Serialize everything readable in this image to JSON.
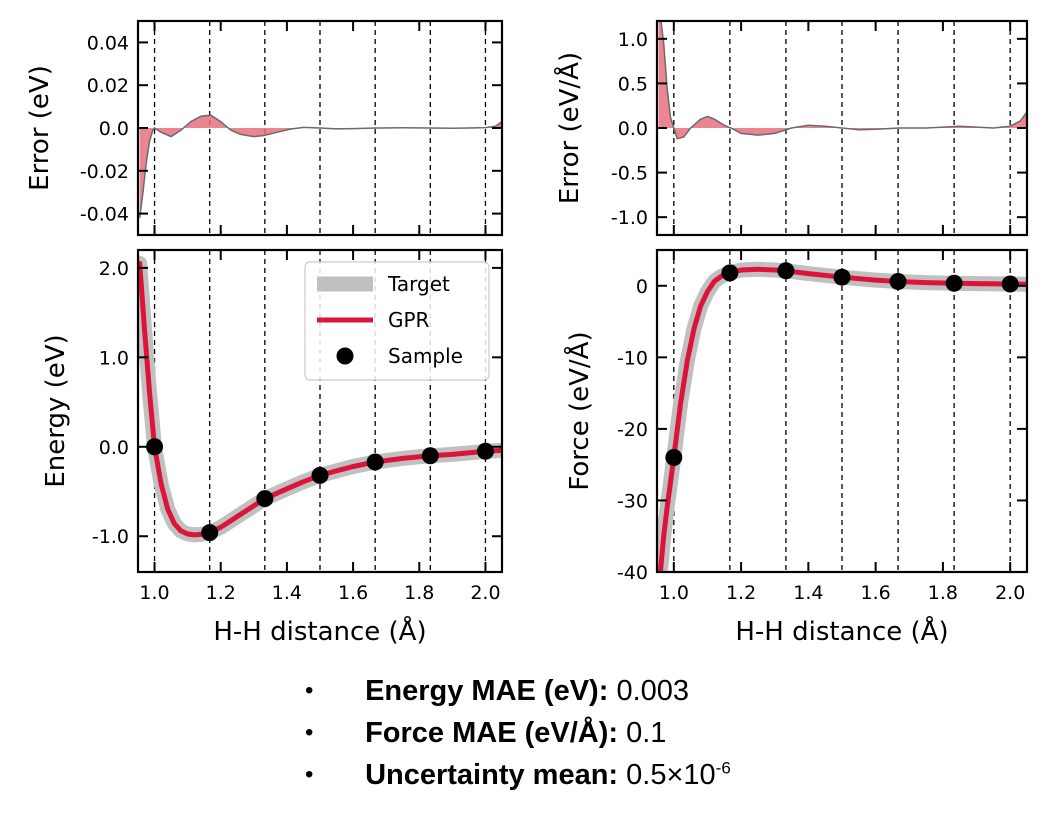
{
  "chart_data": [
    {
      "id": "energy_error",
      "type": "area",
      "ylabel": "Error (eV)",
      "xlim": [
        0.95,
        2.05
      ],
      "ylim": [
        -0.05,
        0.05
      ],
      "yticks": [
        -0.04,
        -0.02,
        0.0,
        0.02,
        0.04
      ],
      "ytick_labels": [
        "-0.04",
        "-0.02",
        "0.0",
        "0.02",
        "0.04"
      ],
      "x": [
        0.955,
        0.965,
        0.975,
        0.985,
        0.995,
        1.0,
        1.02,
        1.05,
        1.08,
        1.11,
        1.14,
        1.17,
        1.2,
        1.23,
        1.26,
        1.3,
        1.33,
        1.37,
        1.41,
        1.45,
        1.5,
        1.55,
        1.6,
        1.67,
        1.75,
        1.83,
        1.9,
        1.95,
        2.0,
        2.03,
        2.05
      ],
      "y": [
        -0.042,
        -0.03,
        -0.016,
        -0.006,
        -0.001,
        0.0,
        -0.002,
        -0.004,
        -0.001,
        0.003,
        0.0055,
        0.006,
        0.003,
        -0.001,
        -0.003,
        -0.004,
        -0.0035,
        -0.002,
        -0.0005,
        0.0003,
        0.0,
        -0.0004,
        -0.0003,
        0.0,
        0.0001,
        0.0,
        -0.0001,
        0.0,
        0.0002,
        0.0008,
        0.003
      ],
      "vlines": [
        1.0,
        1.1667,
        1.3333,
        1.5,
        1.6667,
        1.8333,
        2.0
      ],
      "colors": {
        "fill": "#e8707f",
        "line": "#6b6b6b"
      }
    },
    {
      "id": "force_error",
      "type": "area",
      "ylabel": "Error (eV/Å)",
      "xlim": [
        0.95,
        2.05
      ],
      "ylim": [
        -1.2,
        1.2
      ],
      "yticks": [
        -1.0,
        -0.5,
        0.0,
        0.5,
        1.0
      ],
      "ytick_labels": [
        "-1.0",
        "-0.5",
        "0.0",
        "0.5",
        "1.0"
      ],
      "x": [
        0.955,
        0.962,
        0.97,
        0.98,
        0.99,
        1.0,
        1.01,
        1.03,
        1.05,
        1.08,
        1.1,
        1.12,
        1.15,
        1.17,
        1.2,
        1.25,
        1.3,
        1.35,
        1.4,
        1.45,
        1.5,
        1.55,
        1.6,
        1.67,
        1.75,
        1.8,
        1.85,
        1.9,
        1.95,
        2.0,
        2.03,
        2.05
      ],
      "y": [
        1.2,
        1.2,
        0.95,
        0.45,
        0.12,
        0.0,
        -0.12,
        -0.1,
        0.0,
        0.1,
        0.13,
        0.1,
        0.03,
        0.0,
        -0.06,
        -0.08,
        -0.06,
        0.0,
        0.03,
        0.02,
        0.0,
        -0.02,
        -0.015,
        0.0,
        0.0,
        0.01,
        0.02,
        0.01,
        0.0,
        0.02,
        0.08,
        0.18
      ],
      "vlines": [
        1.0,
        1.1667,
        1.3333,
        1.5,
        1.6667,
        1.8333,
        2.0
      ],
      "colors": {
        "fill": "#e8707f",
        "line": "#6b6b6b"
      }
    },
    {
      "id": "energy",
      "type": "line",
      "xlabel": "H-H distance (Å)",
      "ylabel": "Energy (eV)",
      "xlim": [
        0.95,
        2.05
      ],
      "ylim": [
        -1.4,
        2.2
      ],
      "xticks": [
        1.0,
        1.2,
        1.4,
        1.6,
        1.8,
        2.0
      ],
      "xtick_labels": [
        "1.0",
        "1.2",
        "1.4",
        "1.6",
        "1.8",
        "2.0"
      ],
      "yticks": [
        -1.0,
        0.0,
        1.0,
        2.0
      ],
      "ytick_labels": [
        "-1.0",
        "0.0",
        "1.0",
        "2.0"
      ],
      "curve_x": [
        0.955,
        0.97,
        0.985,
        1.0,
        1.02,
        1.04,
        1.06,
        1.08,
        1.1,
        1.12,
        1.14,
        1.16,
        1.1667,
        1.2,
        1.25,
        1.3,
        1.3333,
        1.4,
        1.45,
        1.5,
        1.55,
        1.6,
        1.6667,
        1.75,
        1.8333,
        1.9,
        2.0,
        2.05
      ],
      "curve_y": [
        2.05,
        1.3,
        0.6,
        0.0,
        -0.42,
        -0.7,
        -0.86,
        -0.94,
        -0.975,
        -0.985,
        -0.98,
        -0.965,
        -0.96,
        -0.9,
        -0.78,
        -0.66,
        -0.58,
        -0.47,
        -0.39,
        -0.32,
        -0.27,
        -0.22,
        -0.17,
        -0.13,
        -0.1,
        -0.085,
        -0.05,
        -0.04
      ],
      "series": [
        {
          "name": "Target",
          "color": "#c0c0c0"
        },
        {
          "name": "GPR",
          "color": "#dc143c"
        },
        {
          "name": "Sample",
          "color": "#000000",
          "x": [
            1.0,
            1.1667,
            1.3333,
            1.5,
            1.6667,
            1.8333,
            2.0
          ],
          "y": [
            0.0,
            -0.96,
            -0.58,
            -0.32,
            -0.17,
            -0.1,
            -0.05
          ]
        }
      ],
      "legend": "top-right",
      "vlines": [
        1.0,
        1.1667,
        1.3333,
        1.5,
        1.6667,
        1.8333,
        2.0
      ]
    },
    {
      "id": "force",
      "type": "line",
      "xlabel": "H-H distance (Å)",
      "ylabel": "Force (eV/Å)",
      "xlim": [
        0.95,
        2.05
      ],
      "ylim": [
        -40,
        5
      ],
      "xticks": [
        1.0,
        1.2,
        1.4,
        1.6,
        1.8,
        2.0
      ],
      "xtick_labels": [
        "1.0",
        "1.2",
        "1.4",
        "1.6",
        "1.8",
        "2.0"
      ],
      "yticks": [
        -40,
        -30,
        -20,
        -10,
        0
      ],
      "ytick_labels": [
        "-40",
        "-30",
        "-20",
        "-10",
        "0"
      ],
      "curve_x": [
        0.96,
        0.97,
        0.98,
        0.99,
        1.0,
        1.02,
        1.04,
        1.06,
        1.08,
        1.1,
        1.12,
        1.14,
        1.16,
        1.1667,
        1.2,
        1.25,
        1.3,
        1.3333,
        1.4,
        1.5,
        1.6,
        1.6667,
        1.75,
        1.8333,
        1.9,
        2.0,
        2.05
      ],
      "curve_y": [
        -40,
        -35,
        -31,
        -27.5,
        -24,
        -16.5,
        -10.5,
        -6,
        -2.8,
        -0.8,
        0.6,
        1.3,
        1.7,
        1.8,
        2.2,
        2.3,
        2.2,
        2.1,
        1.7,
        1.2,
        0.8,
        0.6,
        0.45,
        0.35,
        0.3,
        0.25,
        0.2
      ],
      "series": [
        {
          "name": "Target",
          "color": "#c0c0c0"
        },
        {
          "name": "GPR",
          "color": "#dc143c"
        },
        {
          "name": "Sample",
          "color": "#000000",
          "x": [
            1.0,
            1.1667,
            1.3333,
            1.5,
            1.6667,
            1.8333,
            2.0
          ],
          "y": [
            -24,
            1.8,
            2.1,
            1.2,
            0.6,
            0.35,
            0.25
          ]
        }
      ],
      "vlines": [
        1.0,
        1.1667,
        1.3333,
        1.5,
        1.6667,
        1.8333,
        2.0
      ]
    }
  ],
  "summary": [
    {
      "label": "Energy MAE (eV):",
      "value": "0.003"
    },
    {
      "label": "Force MAE (eV/Å):",
      "value": "0.1"
    },
    {
      "label": "Uncertainty mean:",
      "value": "0.5×10",
      "exponent": "-6"
    }
  ]
}
